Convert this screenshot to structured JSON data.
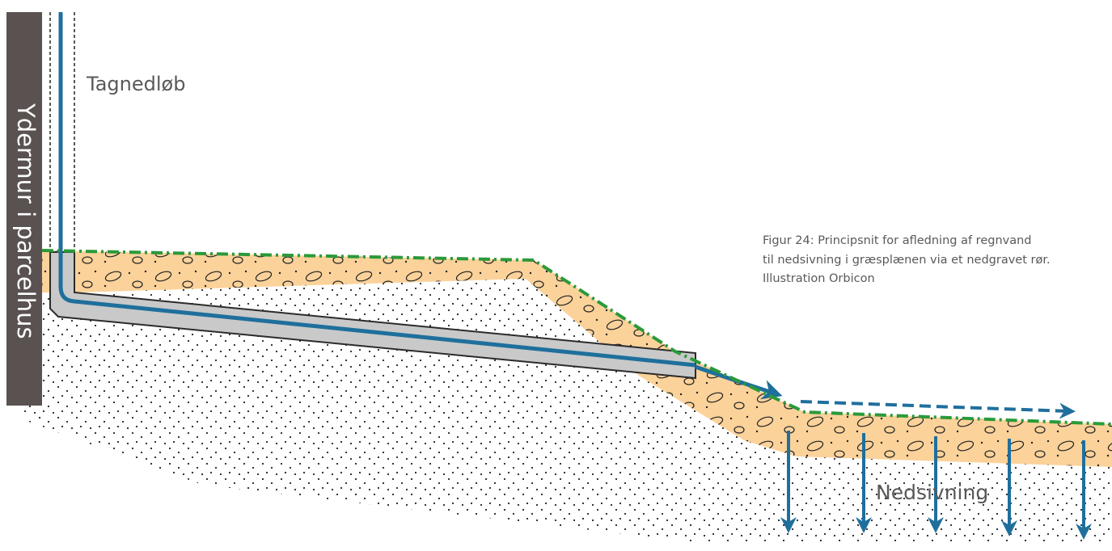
{
  "wall_label": "Ydermur i parcelhus",
  "downpipe_label": "Tagnedløb",
  "infiltration_label": "Nedsivning",
  "caption": {
    "lines": [
      "Figur 24: Principsnit for afledning af regnvand",
      "til nedsivning i græsplænen via et nedgravet rør.",
      "Illustration Orbicon"
    ]
  }
}
